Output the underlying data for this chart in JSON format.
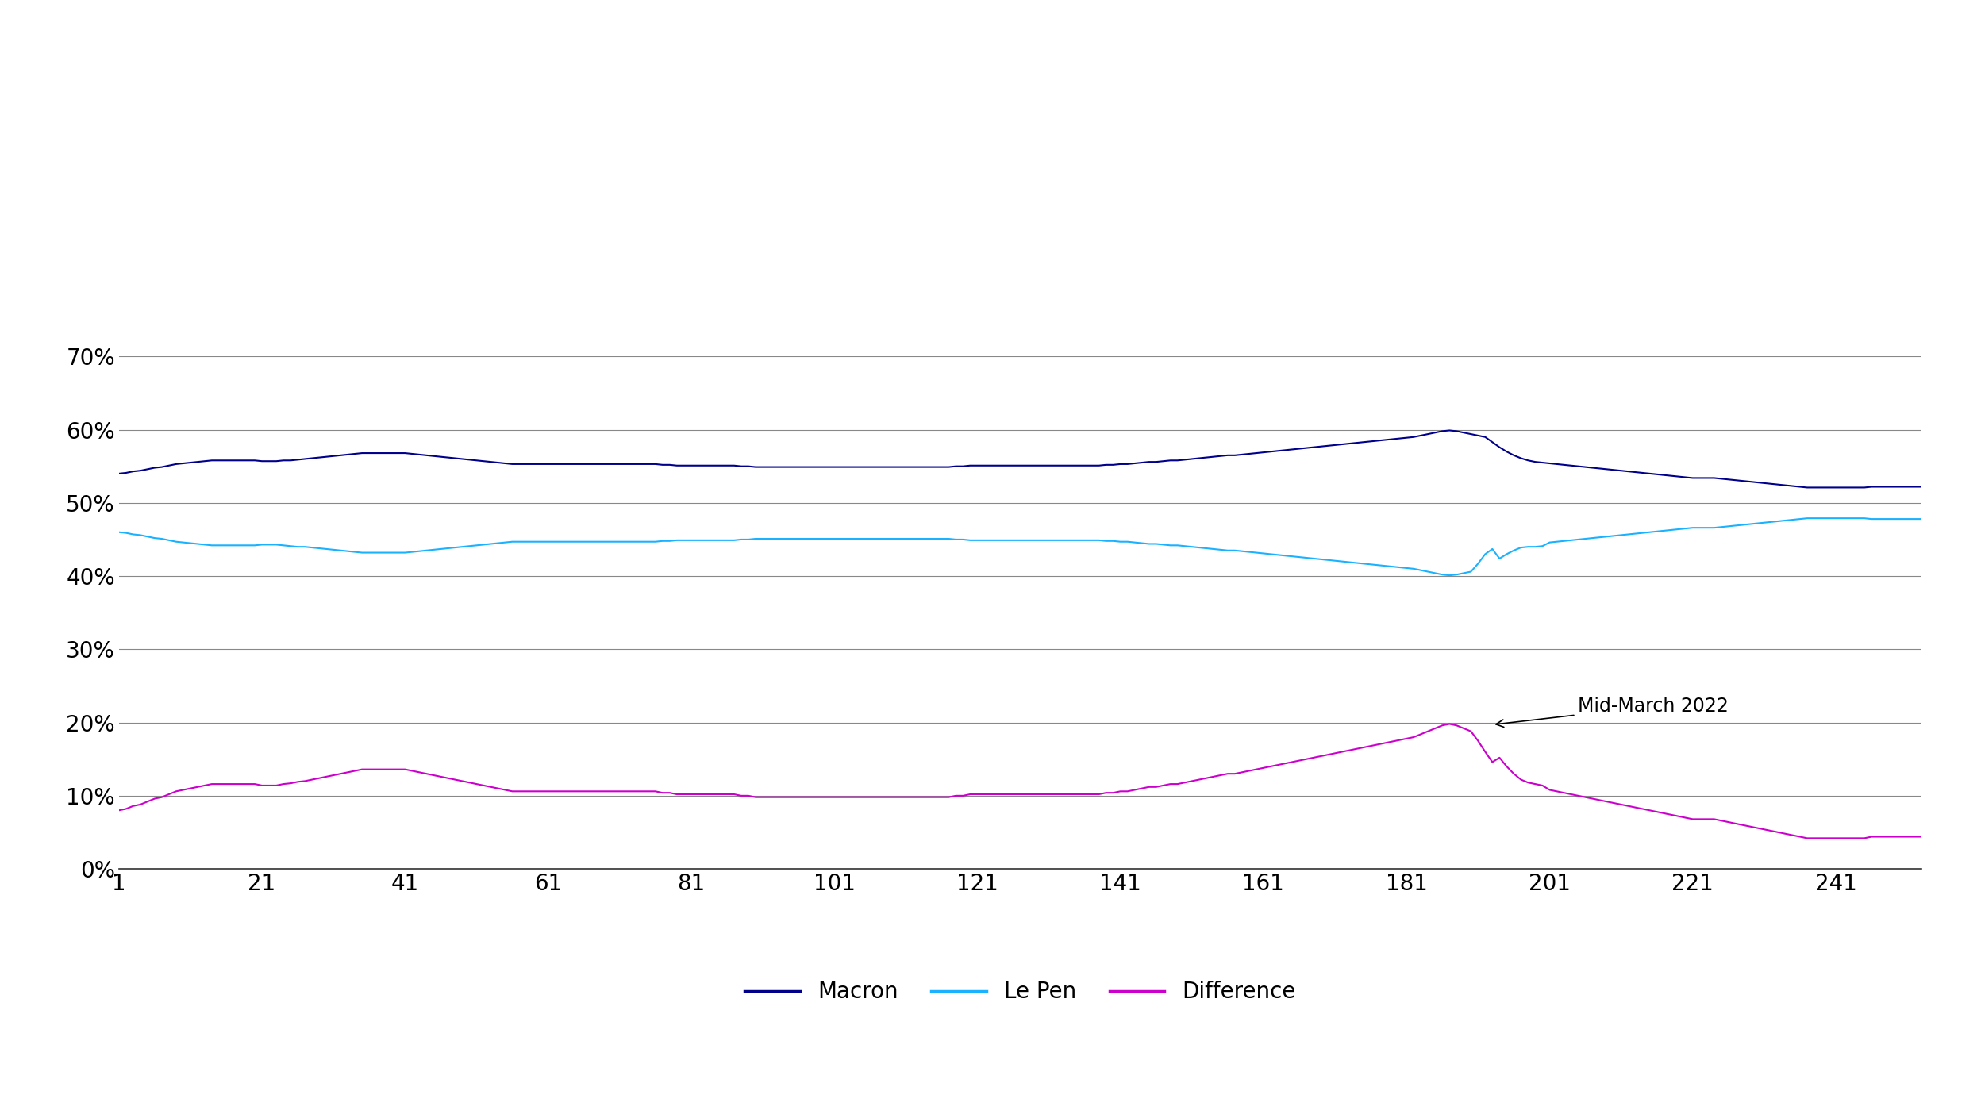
{
  "macron_color": "#00008B",
  "lepen_color": "#1AB2FF",
  "diff_color": "#CC00CC",
  "grid_color": "#888888",
  "background_color": "#ffffff",
  "ylim": [
    0,
    0.7
  ],
  "yticks": [
    0.0,
    0.1,
    0.2,
    0.3,
    0.4,
    0.5,
    0.6,
    0.7
  ],
  "xticks": [
    1,
    21,
    41,
    61,
    81,
    101,
    121,
    141,
    161,
    181,
    201,
    221,
    241
  ],
  "annotation_text": "Mid-March 2022",
  "n_points": 253,
  "macron": [
    0.54,
    0.541,
    0.543,
    0.544,
    0.546,
    0.548,
    0.549,
    0.551,
    0.553,
    0.554,
    0.555,
    0.556,
    0.557,
    0.558,
    0.558,
    0.558,
    0.558,
    0.558,
    0.558,
    0.558,
    0.557,
    0.557,
    0.557,
    0.558,
    0.558,
    0.559,
    0.56,
    0.561,
    0.562,
    0.563,
    0.564,
    0.565,
    0.566,
    0.567,
    0.568,
    0.568,
    0.568,
    0.568,
    0.568,
    0.568,
    0.568,
    0.567,
    0.566,
    0.565,
    0.564,
    0.563,
    0.562,
    0.561,
    0.56,
    0.559,
    0.558,
    0.557,
    0.556,
    0.555,
    0.554,
    0.553,
    0.553,
    0.553,
    0.553,
    0.553,
    0.553,
    0.553,
    0.553,
    0.553,
    0.553,
    0.553,
    0.553,
    0.553,
    0.553,
    0.553,
    0.553,
    0.553,
    0.553,
    0.553,
    0.553,
    0.553,
    0.552,
    0.552,
    0.551,
    0.551,
    0.551,
    0.551,
    0.551,
    0.551,
    0.551,
    0.551,
    0.551,
    0.55,
    0.55,
    0.549,
    0.549,
    0.549,
    0.549,
    0.549,
    0.549,
    0.549,
    0.549,
    0.549,
    0.549,
    0.549,
    0.549,
    0.549,
    0.549,
    0.549,
    0.549,
    0.549,
    0.549,
    0.549,
    0.549,
    0.549,
    0.549,
    0.549,
    0.549,
    0.549,
    0.549,
    0.549,
    0.549,
    0.55,
    0.55,
    0.551,
    0.551,
    0.551,
    0.551,
    0.551,
    0.551,
    0.551,
    0.551,
    0.551,
    0.551,
    0.551,
    0.551,
    0.551,
    0.551,
    0.551,
    0.551,
    0.551,
    0.551,
    0.551,
    0.552,
    0.552,
    0.553,
    0.553,
    0.554,
    0.555,
    0.556,
    0.556,
    0.557,
    0.558,
    0.558,
    0.559,
    0.56,
    0.561,
    0.562,
    0.563,
    0.564,
    0.565,
    0.565,
    0.566,
    0.567,
    0.568,
    0.569,
    0.57,
    0.571,
    0.572,
    0.573,
    0.574,
    0.575,
    0.576,
    0.577,
    0.578,
    0.579,
    0.58,
    0.581,
    0.582,
    0.583,
    0.584,
    0.585,
    0.586,
    0.587,
    0.588,
    0.589,
    0.59,
    0.592,
    0.594,
    0.596,
    0.598,
    0.599,
    0.598,
    0.596,
    0.594,
    0.592,
    0.59,
    0.583,
    0.576,
    0.57,
    0.565,
    0.561,
    0.558,
    0.556,
    0.555,
    0.554,
    0.553,
    0.552,
    0.551,
    0.55,
    0.549,
    0.548,
    0.547,
    0.546,
    0.545,
    0.544,
    0.543,
    0.542,
    0.541,
    0.54,
    0.539,
    0.538,
    0.537,
    0.536,
    0.535,
    0.534,
    0.534,
    0.534,
    0.534,
    0.533,
    0.532,
    0.531,
    0.53,
    0.529,
    0.528,
    0.527,
    0.526,
    0.525,
    0.524,
    0.523,
    0.522,
    0.521,
    0.521,
    0.521,
    0.521,
    0.521,
    0.521,
    0.521,
    0.521,
    0.521,
    0.522,
    0.522,
    0.522,
    0.522,
    0.522,
    0.522,
    0.522,
    0.522
  ],
  "lepen": [
    0.46,
    0.459,
    0.457,
    0.456,
    0.454,
    0.452,
    0.451,
    0.449,
    0.447,
    0.446,
    0.445,
    0.444,
    0.443,
    0.442,
    0.442,
    0.442,
    0.442,
    0.442,
    0.442,
    0.442,
    0.443,
    0.443,
    0.443,
    0.442,
    0.441,
    0.44,
    0.44,
    0.439,
    0.438,
    0.437,
    0.436,
    0.435,
    0.434,
    0.433,
    0.432,
    0.432,
    0.432,
    0.432,
    0.432,
    0.432,
    0.432,
    0.433,
    0.434,
    0.435,
    0.436,
    0.437,
    0.438,
    0.439,
    0.44,
    0.441,
    0.442,
    0.443,
    0.444,
    0.445,
    0.446,
    0.447,
    0.447,
    0.447,
    0.447,
    0.447,
    0.447,
    0.447,
    0.447,
    0.447,
    0.447,
    0.447,
    0.447,
    0.447,
    0.447,
    0.447,
    0.447,
    0.447,
    0.447,
    0.447,
    0.447,
    0.447,
    0.448,
    0.448,
    0.449,
    0.449,
    0.449,
    0.449,
    0.449,
    0.449,
    0.449,
    0.449,
    0.449,
    0.45,
    0.45,
    0.451,
    0.451,
    0.451,
    0.451,
    0.451,
    0.451,
    0.451,
    0.451,
    0.451,
    0.451,
    0.451,
    0.451,
    0.451,
    0.451,
    0.451,
    0.451,
    0.451,
    0.451,
    0.451,
    0.451,
    0.451,
    0.451,
    0.451,
    0.451,
    0.451,
    0.451,
    0.451,
    0.451,
    0.45,
    0.45,
    0.449,
    0.449,
    0.449,
    0.449,
    0.449,
    0.449,
    0.449,
    0.449,
    0.449,
    0.449,
    0.449,
    0.449,
    0.449,
    0.449,
    0.449,
    0.449,
    0.449,
    0.449,
    0.449,
    0.448,
    0.448,
    0.447,
    0.447,
    0.446,
    0.445,
    0.444,
    0.444,
    0.443,
    0.442,
    0.442,
    0.441,
    0.44,
    0.439,
    0.438,
    0.437,
    0.436,
    0.435,
    0.435,
    0.434,
    0.433,
    0.432,
    0.431,
    0.43,
    0.429,
    0.428,
    0.427,
    0.426,
    0.425,
    0.424,
    0.423,
    0.422,
    0.421,
    0.42,
    0.419,
    0.418,
    0.417,
    0.416,
    0.415,
    0.414,
    0.413,
    0.412,
    0.411,
    0.41,
    0.408,
    0.406,
    0.404,
    0.402,
    0.401,
    0.402,
    0.404,
    0.406,
    0.417,
    0.43,
    0.437,
    0.424,
    0.43,
    0.435,
    0.439,
    0.44,
    0.44,
    0.441,
    0.446,
    0.447,
    0.448,
    0.449,
    0.45,
    0.451,
    0.452,
    0.453,
    0.454,
    0.455,
    0.456,
    0.457,
    0.458,
    0.459,
    0.46,
    0.461,
    0.462,
    0.463,
    0.464,
    0.465,
    0.466,
    0.466,
    0.466,
    0.466,
    0.467,
    0.468,
    0.469,
    0.47,
    0.471,
    0.472,
    0.473,
    0.474,
    0.475,
    0.476,
    0.477,
    0.478,
    0.479,
    0.479,
    0.479,
    0.479,
    0.479,
    0.479,
    0.479,
    0.479,
    0.479,
    0.478,
    0.478,
    0.478,
    0.478,
    0.478,
    0.478,
    0.478,
    0.478
  ],
  "legend_labels": [
    "Macron",
    "Le Pen",
    "Difference"
  ],
  "line_width": 1.5
}
